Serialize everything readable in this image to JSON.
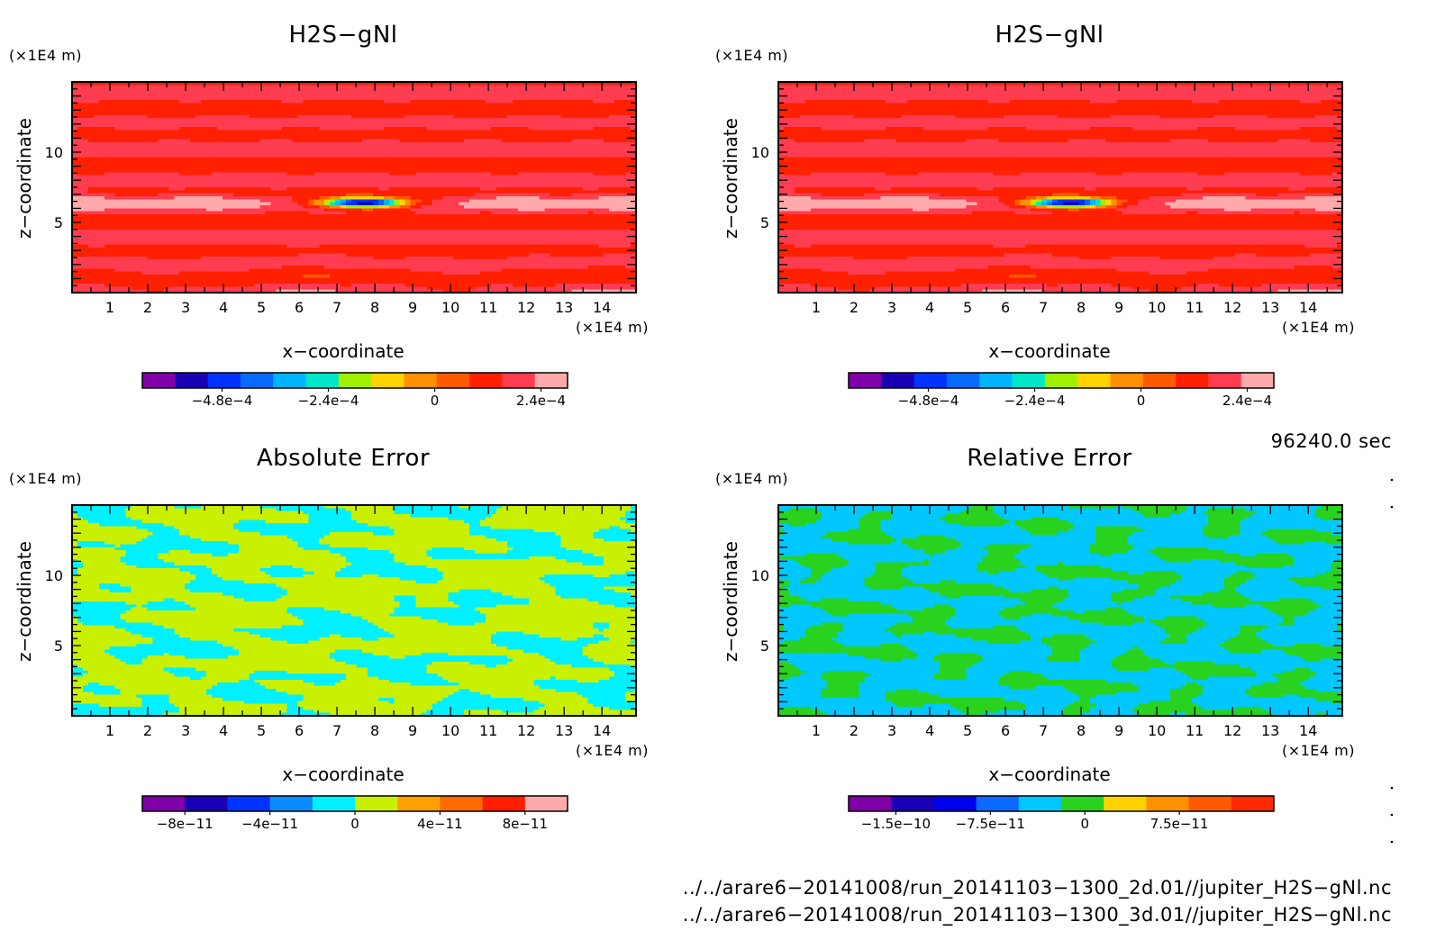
{
  "chart_data": [
    {
      "type": "heatmap",
      "field": "h2s_upper",
      "title": "H2S−gNl",
      "xlabel": "x−coordinate",
      "ylabel": "z−coordinate",
      "x_unit": "(×1E4 m)",
      "y_unit": "(×1E4 m)",
      "xlim": [
        0,
        14.9
      ],
      "ylim": [
        0,
        15
      ],
      "x_ticks": [
        "1",
        "2",
        "3",
        "4",
        "5",
        "6",
        "7",
        "8",
        "9",
        "10",
        "11",
        "12",
        "13",
        "14"
      ],
      "y_ticks": [
        "5",
        "10"
      ],
      "colorbar": {
        "colors": [
          "#7f00a8",
          "#1a00b4",
          "#0033ff",
          "#0a6aff",
          "#00b4ff",
          "#00e6c8",
          "#a0f000",
          "#ffd200",
          "#ff9000",
          "#ff5a00",
          "#ff2000",
          "#ff3c50",
          "#ffaaaa"
        ],
        "bounds": [
          -0.00066,
          -0.0006,
          -0.00054,
          -0.00048,
          -0.00042,
          -0.00036,
          -0.0003,
          -0.00024,
          -0.00018,
          -0.00012,
          -6e-05,
          0,
          6e-05,
          0.00012,
          0.00018,
          0.00024,
          0.0003
        ],
        "labels": [
          "−4.8e−4",
          "−2.4e−4",
          "0",
          "2.4e−4"
        ],
        "label_values": [
          -0.00048,
          -0.00024,
          0,
          0.00024
        ]
      }
    },
    {
      "type": "heatmap",
      "field": "h2s_upper",
      "title": "H2S−gNl",
      "xlabel": "x−coordinate",
      "ylabel": "z−coordinate",
      "x_unit": "(×1E4 m)",
      "y_unit": "(×1E4 m)",
      "xlim": [
        0,
        14.9
      ],
      "ylim": [
        0,
        15
      ],
      "x_ticks": [
        "1",
        "2",
        "3",
        "4",
        "5",
        "6",
        "7",
        "8",
        "9",
        "10",
        "11",
        "12",
        "13",
        "14"
      ],
      "y_ticks": [
        "5",
        "10"
      ],
      "colorbar": {
        "colors": [
          "#7f00a8",
          "#1a00b4",
          "#0033ff",
          "#0a6aff",
          "#00b4ff",
          "#00e6c8",
          "#a0f000",
          "#ffd200",
          "#ff9000",
          "#ff5a00",
          "#ff2000",
          "#ff3c50",
          "#ffaaaa"
        ],
        "bounds": [
          -0.00066,
          -0.0006,
          -0.00054,
          -0.00048,
          -0.00042,
          -0.00036,
          -0.0003,
          -0.00024,
          -0.00018,
          -0.00012,
          -6e-05,
          0,
          6e-05,
          0.00012,
          0.00018,
          0.00024,
          0.0003
        ],
        "labels": [
          "−4.8e−4",
          "−2.4e−4",
          "0",
          "2.4e−4"
        ],
        "label_values": [
          -0.00048,
          -0.00024,
          0,
          0.00024
        ]
      }
    },
    {
      "type": "heatmap",
      "field": "abs_err",
      "title": "Absolute Error",
      "xlabel": "x−coordinate",
      "ylabel": "z−coordinate",
      "x_unit": "(×1E4 m)",
      "y_unit": "(×1E4 m)",
      "xlim": [
        0,
        14.9
      ],
      "ylim": [
        0,
        15
      ],
      "x_ticks": [
        "1",
        "2",
        "3",
        "4",
        "5",
        "6",
        "7",
        "8",
        "9",
        "10",
        "11",
        "12",
        "13",
        "14"
      ],
      "y_ticks": [
        "5",
        "10"
      ],
      "colorbar": {
        "colors": [
          "#7f00a8",
          "#1a00b4",
          "#0033ff",
          "#0a8cff",
          "#00f0ff",
          "#c8f000",
          "#ffa000",
          "#ff6a00",
          "#ff1e00",
          "#ffaaaa"
        ],
        "bounds": [
          -1e-10,
          -8e-11,
          -6e-11,
          -4e-11,
          -2e-11,
          0,
          2e-11,
          4e-11,
          6e-11,
          8e-11,
          1e-10
        ],
        "labels": [
          "−8e−11",
          "−4e−11",
          "0",
          "4e−11",
          "8e−11"
        ],
        "label_values": [
          -8e-11,
          -4e-11,
          0,
          4e-11,
          8e-11
        ]
      }
    },
    {
      "type": "heatmap",
      "field": "rel_err",
      "title": "Relative Error",
      "xlabel": "x−coordinate",
      "ylabel": "z−coordinate",
      "x_unit": "(×1E4 m)",
      "y_unit": "(×1E4 m)",
      "xlim": [
        0,
        14.9
      ],
      "ylim": [
        0,
        15
      ],
      "x_ticks": [
        "1",
        "2",
        "3",
        "4",
        "5",
        "6",
        "7",
        "8",
        "9",
        "10",
        "11",
        "12",
        "13",
        "14"
      ],
      "y_ticks": [
        "5",
        "10"
      ],
      "colorbar": {
        "colors": [
          "#7f00a8",
          "#1a00b4",
          "#0000f0",
          "#0a6aff",
          "#00c8ff",
          "#28d21e",
          "#ffd200",
          "#ff9000",
          "#ff5a00",
          "#ff2a00"
        ],
        "bounds": [
          -1.875e-10,
          -1.5e-10,
          -1.125e-10,
          -7.5e-11,
          -3.75e-11,
          0,
          3.75e-11,
          7.5e-11,
          1.125e-10,
          1.5e-10
        ],
        "labels": [
          "−1.5e−10",
          "−7.5e−11",
          "0",
          "7.5e−11"
        ],
        "label_values": [
          -1.5e-10,
          -7.5e-11,
          0,
          7.5e-11
        ]
      }
    }
  ],
  "time_label": "96240.0 sec",
  "file_paths": [
    "../../arare6−20141008/run_20141103−1300_2d.01//jupiter_H2S−gNl.nc",
    "../../arare6−20141008/run_20141103−1300_3d.01//jupiter_H2S−gNl.nc"
  ]
}
